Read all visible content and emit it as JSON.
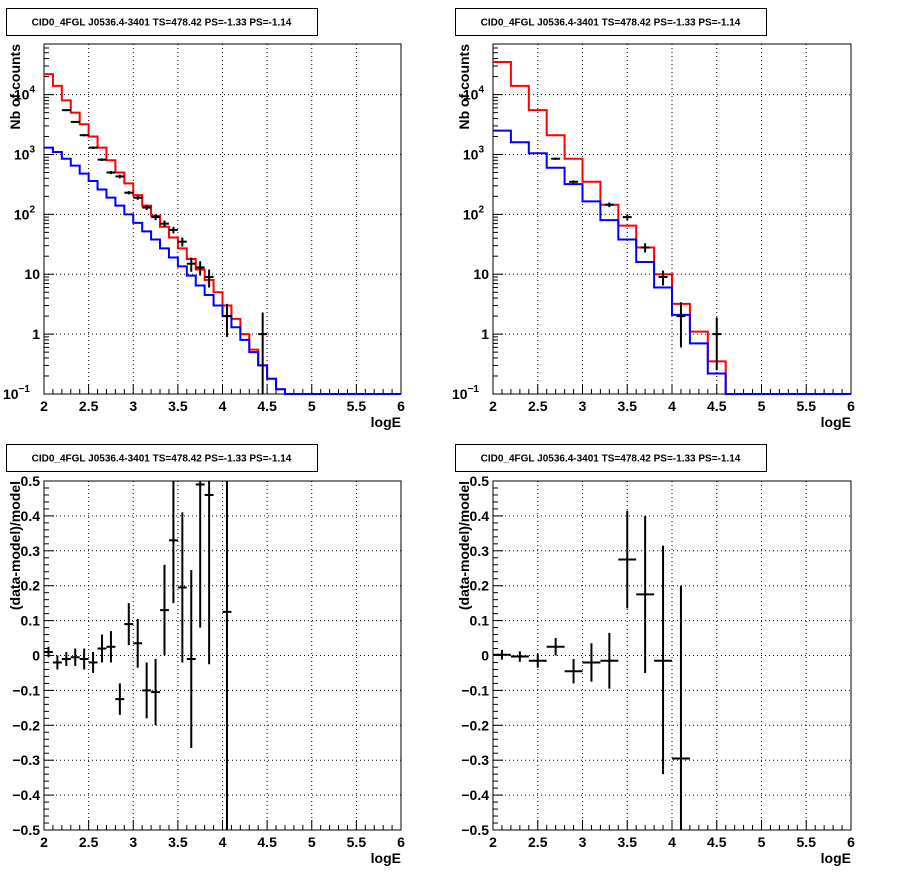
{
  "chart_data": [
    {
      "type": "line",
      "title": "CID0_4FGL J0536.4-3401 TS=478.42 PS=-1.33 PS=-1.14",
      "xlabel": "logE",
      "ylabel": "Nb of counts",
      "xlim": [
        2,
        6
      ],
      "ylim": [
        0.1,
        70000
      ],
      "yscale": "log",
      "grid": true,
      "x_ticks": [
        "2",
        "2.5",
        "3",
        "3.5",
        "4",
        "4.5",
        "5",
        "5.5",
        "6"
      ],
      "y_ticks": [
        {
          "value": 0.1,
          "label": "10",
          "exp": "−1"
        },
        {
          "value": 1,
          "label": "1",
          "exp": ""
        },
        {
          "value": 10,
          "label": "10",
          "exp": ""
        },
        {
          "value": 100,
          "label": "10",
          "exp": "2"
        },
        {
          "value": 1000,
          "label": "10",
          "exp": "3"
        },
        {
          "value": 10000,
          "label": "10",
          "exp": "4"
        }
      ],
      "series": [
        {
          "color": "#ff0000",
          "bin_width": 0.1,
          "bin_edges": [
            2.0,
            2.1,
            2.2,
            2.3,
            2.4,
            2.5,
            2.6,
            2.7,
            2.8,
            2.9,
            3.0,
            3.1,
            3.2,
            3.3,
            3.4,
            3.5,
            3.6,
            3.7,
            3.8,
            3.9,
            4.0,
            4.1,
            4.2,
            4.3,
            4.4,
            4.5,
            4.6,
            4.7,
            4.8,
            4.9,
            5.0,
            5.1,
            5.2,
            5.3,
            5.4,
            5.5,
            5.6,
            5.7,
            5.8,
            5.9,
            6.0
          ],
          "values": [
            22000,
            14000,
            8000,
            5000,
            3200,
            2000,
            1300,
            800,
            500,
            330,
            210,
            140,
            95,
            62,
            41,
            27,
            18,
            12,
            8,
            5,
            3,
            1.8,
            1,
            0.55,
            0.3,
            0.18,
            0.12,
            0.1,
            0.1,
            0.1,
            0.1,
            0.1,
            0.1,
            0.1,
            0.1,
            0.1,
            0.1,
            0.1,
            0.1,
            0.1
          ]
        },
        {
          "color": "#0000ff",
          "bin_width": 0.1,
          "bin_edges": [
            2.0,
            2.1,
            2.2,
            2.3,
            2.4,
            2.5,
            2.6,
            2.7,
            2.8,
            2.9,
            3.0,
            3.1,
            3.2,
            3.3,
            3.4,
            3.5,
            3.6,
            3.7,
            3.8,
            3.9,
            4.0,
            4.1,
            4.2,
            4.3,
            4.4,
            4.5,
            4.6,
            4.7,
            4.8,
            4.9,
            5.0,
            5.1,
            5.2,
            5.3,
            5.4,
            5.5,
            5.6,
            5.7,
            5.8,
            5.9,
            6.0
          ],
          "values": [
            1300,
            1100,
            850,
            650,
            480,
            360,
            260,
            190,
            140,
            100,
            72,
            52,
            38,
            27,
            19,
            13.5,
            9.5,
            6.5,
            4.5,
            3,
            2,
            1.3,
            0.8,
            0.5,
            0.3,
            0.18,
            0.12,
            0.1,
            0.1,
            0.1,
            0.1,
            0.1,
            0.1,
            0.1,
            0.1,
            0.1,
            0.1,
            0.1,
            0.1,
            0.1
          ]
        }
      ],
      "points": [
        {
          "x": 2.25,
          "y": 5500,
          "ylo": 5300,
          "yhi": 5700
        },
        {
          "x": 2.35,
          "y": 3500,
          "ylo": 3380,
          "yhi": 3620
        },
        {
          "x": 2.45,
          "y": 2100,
          "ylo": 2010,
          "yhi": 2190
        },
        {
          "x": 2.55,
          "y": 1300,
          "ylo": 1240,
          "yhi": 1360
        },
        {
          "x": 2.65,
          "y": 820,
          "ylo": 780,
          "yhi": 860
        },
        {
          "x": 2.75,
          "y": 500,
          "ylo": 470,
          "yhi": 530
        },
        {
          "x": 2.85,
          "y": 430,
          "ylo": 400,
          "yhi": 460
        },
        {
          "x": 2.95,
          "y": 230,
          "ylo": 215,
          "yhi": 245
        },
        {
          "x": 3.05,
          "y": 190,
          "ylo": 175,
          "yhi": 205
        },
        {
          "x": 3.15,
          "y": 130,
          "ylo": 118,
          "yhi": 142
        },
        {
          "x": 3.25,
          "y": 90,
          "ylo": 80,
          "yhi": 100
        },
        {
          "x": 3.35,
          "y": 70,
          "ylo": 62,
          "yhi": 79
        },
        {
          "x": 3.45,
          "y": 55,
          "ylo": 48,
          "yhi": 62
        },
        {
          "x": 3.55,
          "y": 35,
          "ylo": 29,
          "yhi": 41
        },
        {
          "x": 3.65,
          "y": 15,
          "ylo": 11,
          "yhi": 19
        },
        {
          "x": 3.75,
          "y": 13,
          "ylo": 9.5,
          "yhi": 16.5
        },
        {
          "x": 3.85,
          "y": 9,
          "ylo": 6,
          "yhi": 12
        },
        {
          "x": 4.05,
          "y": 2,
          "ylo": 0.9,
          "yhi": 3.2
        },
        {
          "x": 4.45,
          "y": 1,
          "ylo": 0.1,
          "yhi": 2.3
        }
      ]
    },
    {
      "type": "line",
      "title": "CID0_4FGL J0536.4-3401 TS=478.42 PS=-1.33 PS=-1.14",
      "xlabel": "logE",
      "ylabel": "Nb of counts",
      "xlim": [
        2,
        6
      ],
      "ylim": [
        0.1,
        70000
      ],
      "yscale": "log",
      "grid": true,
      "x_ticks": [
        "2",
        "2.5",
        "3",
        "3.5",
        "4",
        "4.5",
        "5",
        "5.5",
        "6"
      ],
      "y_ticks": [
        {
          "value": 0.1,
          "label": "10",
          "exp": "−1"
        },
        {
          "value": 1,
          "label": "1",
          "exp": ""
        },
        {
          "value": 10,
          "label": "10",
          "exp": ""
        },
        {
          "value": 100,
          "label": "10",
          "exp": "2"
        },
        {
          "value": 1000,
          "label": "10",
          "exp": "3"
        },
        {
          "value": 10000,
          "label": "10",
          "exp": "4"
        }
      ],
      "series": [
        {
          "color": "#ff0000",
          "bin_edges": [
            2.0,
            2.2,
            2.4,
            2.6,
            2.8,
            3.0,
            3.2,
            3.4,
            3.6,
            3.8,
            4.0,
            4.2,
            4.4,
            4.6,
            4.8,
            5.0,
            5.2,
            5.4,
            5.6,
            5.8,
            6.0
          ],
          "values": [
            35000,
            14000,
            5500,
            2100,
            850,
            350,
            145,
            65,
            28,
            10,
            3.2,
            1.1,
            0.35,
            0.1,
            0.1,
            0.1,
            0.1,
            0.1,
            0.1,
            0.1
          ]
        },
        {
          "color": "#0000ff",
          "bin_edges": [
            2.0,
            2.2,
            2.4,
            2.6,
            2.8,
            3.0,
            3.2,
            3.4,
            3.6,
            3.8,
            4.0,
            4.2,
            4.4,
            4.6,
            4.8,
            5.0,
            5.2,
            5.4,
            5.6,
            5.8,
            6.0
          ],
          "values": [
            2500,
            1600,
            1050,
            600,
            320,
            165,
            80,
            38,
            16,
            6,
            2.1,
            0.7,
            0.22,
            0.1,
            0.1,
            0.1,
            0.1,
            0.1,
            0.1,
            0.1
          ]
        }
      ],
      "points": [
        {
          "x": 2.7,
          "y": 850,
          "ylo": 810,
          "yhi": 890
        },
        {
          "x": 2.9,
          "y": 350,
          "ylo": 330,
          "yhi": 370
        },
        {
          "x": 3.3,
          "y": 145,
          "ylo": 132,
          "yhi": 158
        },
        {
          "x": 3.5,
          "y": 90,
          "ylo": 80,
          "yhi": 100
        },
        {
          "x": 3.7,
          "y": 28,
          "ylo": 23,
          "yhi": 33
        },
        {
          "x": 3.9,
          "y": 9,
          "ylo": 6.5,
          "yhi": 11.5
        },
        {
          "x": 4.1,
          "y": 2,
          "ylo": 0.6,
          "yhi": 3.4
        },
        {
          "x": 4.5,
          "y": 1,
          "ylo": 0.25,
          "yhi": 1.9
        }
      ]
    },
    {
      "type": "scatter",
      "title": "CID0_4FGL J0536.4-3401 TS=478.42 PS=-1.33 PS=-1.14",
      "xlabel": "logE",
      "ylabel": "(data-model)/model",
      "xlim": [
        2,
        6
      ],
      "ylim": [
        -0.5,
        0.5
      ],
      "grid": true,
      "x_ticks": [
        "2",
        "2.5",
        "3",
        "3.5",
        "4",
        "4.5",
        "5",
        "5.5",
        "6"
      ],
      "y_ticks": [
        "−0.5",
        "−0.4",
        "−0.3",
        "−0.2",
        "−0.1",
        "0",
        "0.1",
        "0.2",
        "0.3",
        "0.4",
        "0.5"
      ],
      "bin_width": 0.1,
      "points": [
        {
          "x": 2.05,
          "y": 0.01,
          "ylo": -0.005,
          "yhi": 0.025
        },
        {
          "x": 2.15,
          "y": -0.02,
          "ylo": -0.04,
          "yhi": 0.0
        },
        {
          "x": 2.25,
          "y": -0.01,
          "ylo": -0.03,
          "yhi": 0.01
        },
        {
          "x": 2.35,
          "y": -0.005,
          "ylo": -0.03,
          "yhi": 0.02
        },
        {
          "x": 2.45,
          "y": -0.01,
          "ylo": -0.04,
          "yhi": 0.02
        },
        {
          "x": 2.55,
          "y": -0.02,
          "ylo": -0.05,
          "yhi": 0.01
        },
        {
          "x": 2.65,
          "y": 0.02,
          "ylo": -0.02,
          "yhi": 0.06
        },
        {
          "x": 2.75,
          "y": 0.025,
          "ylo": -0.02,
          "yhi": 0.07
        },
        {
          "x": 2.85,
          "y": -0.125,
          "ylo": -0.17,
          "yhi": -0.08
        },
        {
          "x": 2.95,
          "y": 0.09,
          "ylo": 0.03,
          "yhi": 0.15
        },
        {
          "x": 3.05,
          "y": 0.035,
          "ylo": -0.035,
          "yhi": 0.105
        },
        {
          "x": 3.15,
          "y": -0.1,
          "ylo": -0.18,
          "yhi": -0.02
        },
        {
          "x": 3.25,
          "y": -0.105,
          "ylo": -0.2,
          "yhi": -0.01
        },
        {
          "x": 3.35,
          "y": 0.13,
          "ylo": 0.0,
          "yhi": 0.26
        },
        {
          "x": 3.45,
          "y": 0.33,
          "ylo": 0.15,
          "yhi": 0.5
        },
        {
          "x": 3.55,
          "y": 0.195,
          "ylo": -0.02,
          "yhi": 0.41
        },
        {
          "x": 3.65,
          "y": -0.01,
          "ylo": -0.265,
          "yhi": 0.245
        },
        {
          "x": 3.75,
          "y": 0.49,
          "ylo": 0.08,
          "yhi": 0.5
        },
        {
          "x": 3.85,
          "y": 0.46,
          "ylo": -0.025,
          "yhi": 0.5
        },
        {
          "x": 4.05,
          "y": 0.125,
          "ylo": -0.5,
          "yhi": 0.5
        }
      ]
    },
    {
      "type": "scatter",
      "title": "CID0_4FGL J0536.4-3401 TS=478.42 PS=-1.33 PS=-1.14",
      "xlabel": "logE",
      "ylabel": "(data-model)/model",
      "xlim": [
        2,
        6
      ],
      "ylim": [
        -0.5,
        0.5
      ],
      "grid": true,
      "x_ticks": [
        "2",
        "2.5",
        "3",
        "3.5",
        "4",
        "4.5",
        "5",
        "5.5",
        "6"
      ],
      "y_ticks": [
        "−0.5",
        "−0.4",
        "−0.3",
        "−0.2",
        "−0.1",
        "0",
        "0.1",
        "0.2",
        "0.3",
        "0.4",
        "0.5"
      ],
      "bin_width": 0.2,
      "points": [
        {
          "x": 2.1,
          "y": 0.002,
          "ylo": -0.012,
          "yhi": 0.016
        },
        {
          "x": 2.3,
          "y": -0.003,
          "ylo": -0.018,
          "yhi": 0.012
        },
        {
          "x": 2.5,
          "y": -0.015,
          "ylo": -0.035,
          "yhi": 0.005
        },
        {
          "x": 2.7,
          "y": 0.025,
          "ylo": 0.0,
          "yhi": 0.05
        },
        {
          "x": 2.9,
          "y": -0.045,
          "ylo": -0.08,
          "yhi": -0.01
        },
        {
          "x": 3.1,
          "y": -0.02,
          "ylo": -0.075,
          "yhi": 0.035
        },
        {
          "x": 3.3,
          "y": -0.015,
          "ylo": -0.095,
          "yhi": 0.065
        },
        {
          "x": 3.5,
          "y": 0.275,
          "ylo": 0.135,
          "yhi": 0.415
        },
        {
          "x": 3.7,
          "y": 0.175,
          "ylo": -0.05,
          "yhi": 0.4
        },
        {
          "x": 3.9,
          "y": -0.015,
          "ylo": -0.34,
          "yhi": 0.315
        },
        {
          "x": 4.1,
          "y": -0.295,
          "ylo": -0.5,
          "yhi": 0.2
        }
      ]
    }
  ]
}
